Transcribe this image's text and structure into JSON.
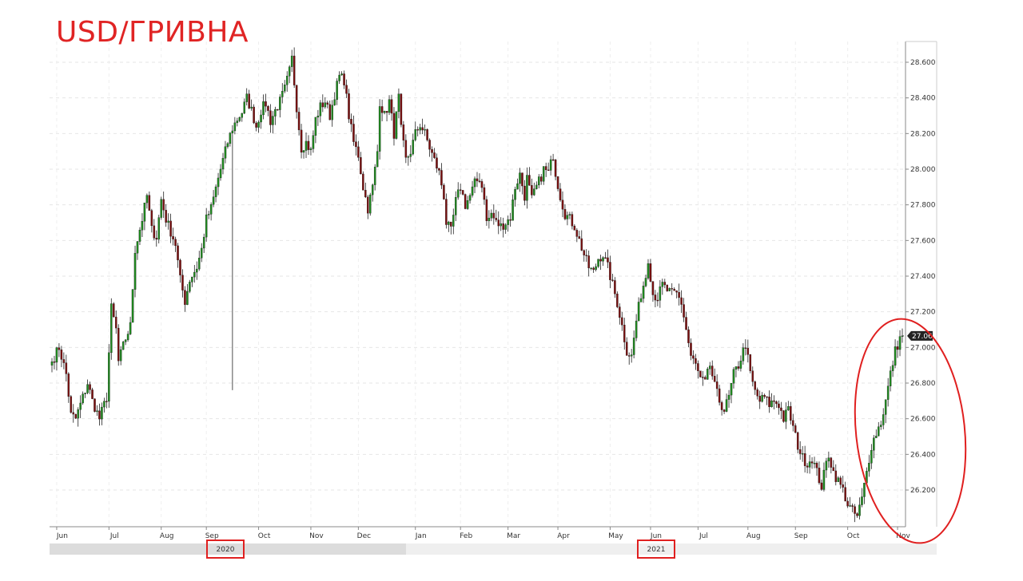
{
  "title": "USD/ГРИВНА",
  "chart_data": {
    "type": "candlestick",
    "title": "USD/ГРИВНА",
    "ylim": [
      26.0,
      28.7
    ],
    "y_ticks": [
      "28.600",
      "28.400",
      "28.200",
      "28.000",
      "27.800",
      "27.600",
      "27.400",
      "27.200",
      "27.000",
      "26.800",
      "26.600",
      "26.400",
      "26.200"
    ],
    "y_tick_values": [
      28.6,
      28.4,
      28.2,
      28.0,
      27.8,
      27.6,
      27.4,
      27.2,
      27.0,
      26.8,
      26.6,
      26.4,
      26.2
    ],
    "months": [
      {
        "label": "Jun",
        "index": 2
      },
      {
        "label": "Jul",
        "index": 24
      },
      {
        "label": "Aug",
        "index": 46
      },
      {
        "label": "Sep",
        "index": 65
      },
      {
        "label": "Oct",
        "index": 87
      },
      {
        "label": "Nov",
        "index": 109
      },
      {
        "label": "Dec",
        "index": 129
      },
      {
        "label": "Jan",
        "index": 153
      },
      {
        "label": "Feb",
        "index": 172
      },
      {
        "label": "Mar",
        "index": 192
      },
      {
        "label": "Apr",
        "index": 213
      },
      {
        "label": "May",
        "index": 235
      },
      {
        "label": "Jun",
        "index": 252
      },
      {
        "label": "Jul",
        "index": 272
      },
      {
        "label": "Aug",
        "index": 293
      },
      {
        "label": "Sep",
        "index": 313
      },
      {
        "label": "Oct",
        "index": 335
      },
      {
        "label": "Nov",
        "index": 356
      }
    ],
    "years": [
      {
        "label": "2020",
        "index": 75
      },
      {
        "label": "2021",
        "index": 262
      }
    ],
    "last_price": "27.065",
    "bull_color": "#1f8a1f",
    "bear_color": "#7a1010",
    "grid": true,
    "annotation": "red ellipse around the last candles",
    "candle_anchors": [
      [
        0,
        26.92
      ],
      [
        3,
        27.0
      ],
      [
        6,
        26.85
      ],
      [
        8,
        26.62
      ],
      [
        10,
        26.6
      ],
      [
        13,
        26.72
      ],
      [
        15,
        26.8
      ],
      [
        17,
        26.7
      ],
      [
        20,
        26.6
      ],
      [
        23,
        26.72
      ],
      [
        25,
        27.22
      ],
      [
        27,
        27.1
      ],
      [
        28,
        26.92
      ],
      [
        31,
        27.05
      ],
      [
        33,
        27.12
      ],
      [
        35,
        27.55
      ],
      [
        38,
        27.72
      ],
      [
        40,
        27.85
      ],
      [
        42,
        27.66
      ],
      [
        44,
        27.62
      ],
      [
        46,
        27.83
      ],
      [
        48,
        27.72
      ],
      [
        50,
        27.65
      ],
      [
        52,
        27.58
      ],
      [
        54,
        27.38
      ],
      [
        56,
        27.26
      ],
      [
        58,
        27.38
      ],
      [
        61,
        27.45
      ],
      [
        63,
        27.55
      ],
      [
        65,
        27.72
      ],
      [
        67,
        27.78
      ],
      [
        70,
        27.95
      ],
      [
        72,
        28.05
      ],
      [
        74,
        28.15
      ],
      [
        76,
        28.23
      ],
      [
        78,
        28.28
      ],
      [
        80,
        28.32
      ],
      [
        82,
        28.4
      ],
      [
        84,
        28.33
      ],
      [
        86,
        28.24
      ],
      [
        88,
        28.33
      ],
      [
        90,
        28.37
      ],
      [
        92,
        28.27
      ],
      [
        94,
        28.33
      ],
      [
        96,
        28.38
      ],
      [
        98,
        28.45
      ],
      [
        100,
        28.55
      ],
      [
        101,
        28.62
      ],
      [
        103,
        28.35
      ],
      [
        105,
        28.12
      ],
      [
        107,
        28.15
      ],
      [
        109,
        28.1
      ],
      [
        111,
        28.28
      ],
      [
        113,
        28.35
      ],
      [
        115,
        28.38
      ],
      [
        117,
        28.3
      ],
      [
        119,
        28.42
      ],
      [
        121,
        28.52
      ],
      [
        123,
        28.5
      ],
      [
        125,
        28.3
      ],
      [
        127,
        28.15
      ],
      [
        129,
        28.08
      ],
      [
        131,
        27.9
      ],
      [
        133,
        27.78
      ],
      [
        135,
        27.9
      ],
      [
        137,
        28.1
      ],
      [
        138,
        28.38
      ],
      [
        140,
        28.3
      ],
      [
        142,
        28.38
      ],
      [
        144,
        28.2
      ],
      [
        146,
        28.4
      ],
      [
        147,
        28.22
      ],
      [
        149,
        28.05
      ],
      [
        151,
        28.1
      ],
      [
        153,
        28.2
      ],
      [
        155,
        28.25
      ],
      [
        157,
        28.2
      ],
      [
        159,
        28.12
      ],
      [
        161,
        28.05
      ],
      [
        163,
        27.98
      ],
      [
        165,
        27.85
      ],
      [
        166,
        27.7
      ],
      [
        168,
        27.65
      ],
      [
        170,
        27.82
      ],
      [
        172,
        27.9
      ],
      [
        174,
        27.8
      ],
      [
        176,
        27.85
      ],
      [
        178,
        27.92
      ],
      [
        180,
        27.95
      ],
      [
        182,
        27.85
      ],
      [
        183,
        27.7
      ],
      [
        185,
        27.75
      ],
      [
        187,
        27.7
      ],
      [
        189,
        27.68
      ],
      [
        191,
        27.7
      ],
      [
        193,
        27.73
      ],
      [
        195,
        27.9
      ],
      [
        197,
        27.97
      ],
      [
        199,
        27.85
      ],
      [
        200,
        27.95
      ],
      [
        202,
        27.83
      ],
      [
        204,
        27.9
      ],
      [
        206,
        27.96
      ],
      [
        207,
        28.0
      ],
      [
        209,
        27.98
      ],
      [
        211,
        28.08
      ],
      [
        212,
        27.98
      ],
      [
        214,
        27.85
      ],
      [
        216,
        27.75
      ],
      [
        218,
        27.72
      ],
      [
        220,
        27.68
      ],
      [
        222,
        27.6
      ],
      [
        224,
        27.52
      ],
      [
        226,
        27.45
      ],
      [
        228,
        27.42
      ],
      [
        230,
        27.5
      ],
      [
        232,
        27.52
      ],
      [
        234,
        27.45
      ],
      [
        236,
        27.35
      ],
      [
        238,
        27.25
      ],
      [
        240,
        27.12
      ],
      [
        242,
        26.98
      ],
      [
        244,
        26.95
      ],
      [
        246,
        27.15
      ],
      [
        248,
        27.3
      ],
      [
        250,
        27.4
      ],
      [
        251,
        27.5
      ],
      [
        253,
        27.3
      ],
      [
        255,
        27.28
      ],
      [
        257,
        27.35
      ],
      [
        259,
        27.32
      ],
      [
        261,
        27.3
      ],
      [
        263,
        27.3
      ],
      [
        265,
        27.25
      ],
      [
        267,
        27.1
      ],
      [
        269,
        26.95
      ],
      [
        271,
        26.9
      ],
      [
        273,
        26.82
      ],
      [
        275,
        26.8
      ],
      [
        277,
        26.9
      ],
      [
        279,
        26.78
      ],
      [
        281,
        26.7
      ],
      [
        283,
        26.65
      ],
      [
        285,
        26.72
      ],
      [
        287,
        26.85
      ],
      [
        289,
        26.9
      ],
      [
        291,
        26.98
      ],
      [
        292,
        27.02
      ],
      [
        294,
        26.85
      ],
      [
        296,
        26.75
      ],
      [
        298,
        26.7
      ],
      [
        300,
        26.72
      ],
      [
        302,
        26.68
      ],
      [
        304,
        26.7
      ],
      [
        306,
        26.68
      ],
      [
        308,
        26.6
      ],
      [
        310,
        26.65
      ],
      [
        312,
        26.55
      ],
      [
        314,
        26.45
      ],
      [
        316,
        26.38
      ],
      [
        318,
        26.35
      ],
      [
        320,
        26.38
      ],
      [
        322,
        26.3
      ],
      [
        324,
        26.22
      ],
      [
        326,
        26.35
      ],
      [
        327,
        26.4
      ],
      [
        329,
        26.3
      ],
      [
        331,
        26.25
      ],
      [
        333,
        26.2
      ],
      [
        335,
        26.12
      ],
      [
        337,
        26.08
      ],
      [
        339,
        26.05
      ],
      [
        341,
        26.15
      ],
      [
        343,
        26.3
      ],
      [
        345,
        26.45
      ],
      [
        347,
        26.52
      ],
      [
        349,
        26.58
      ],
      [
        351,
        26.7
      ],
      [
        353,
        26.85
      ],
      [
        355,
        26.98
      ],
      [
        357,
        27.05
      ],
      [
        358,
        27.065
      ]
    ],
    "candle_count": 359
  }
}
